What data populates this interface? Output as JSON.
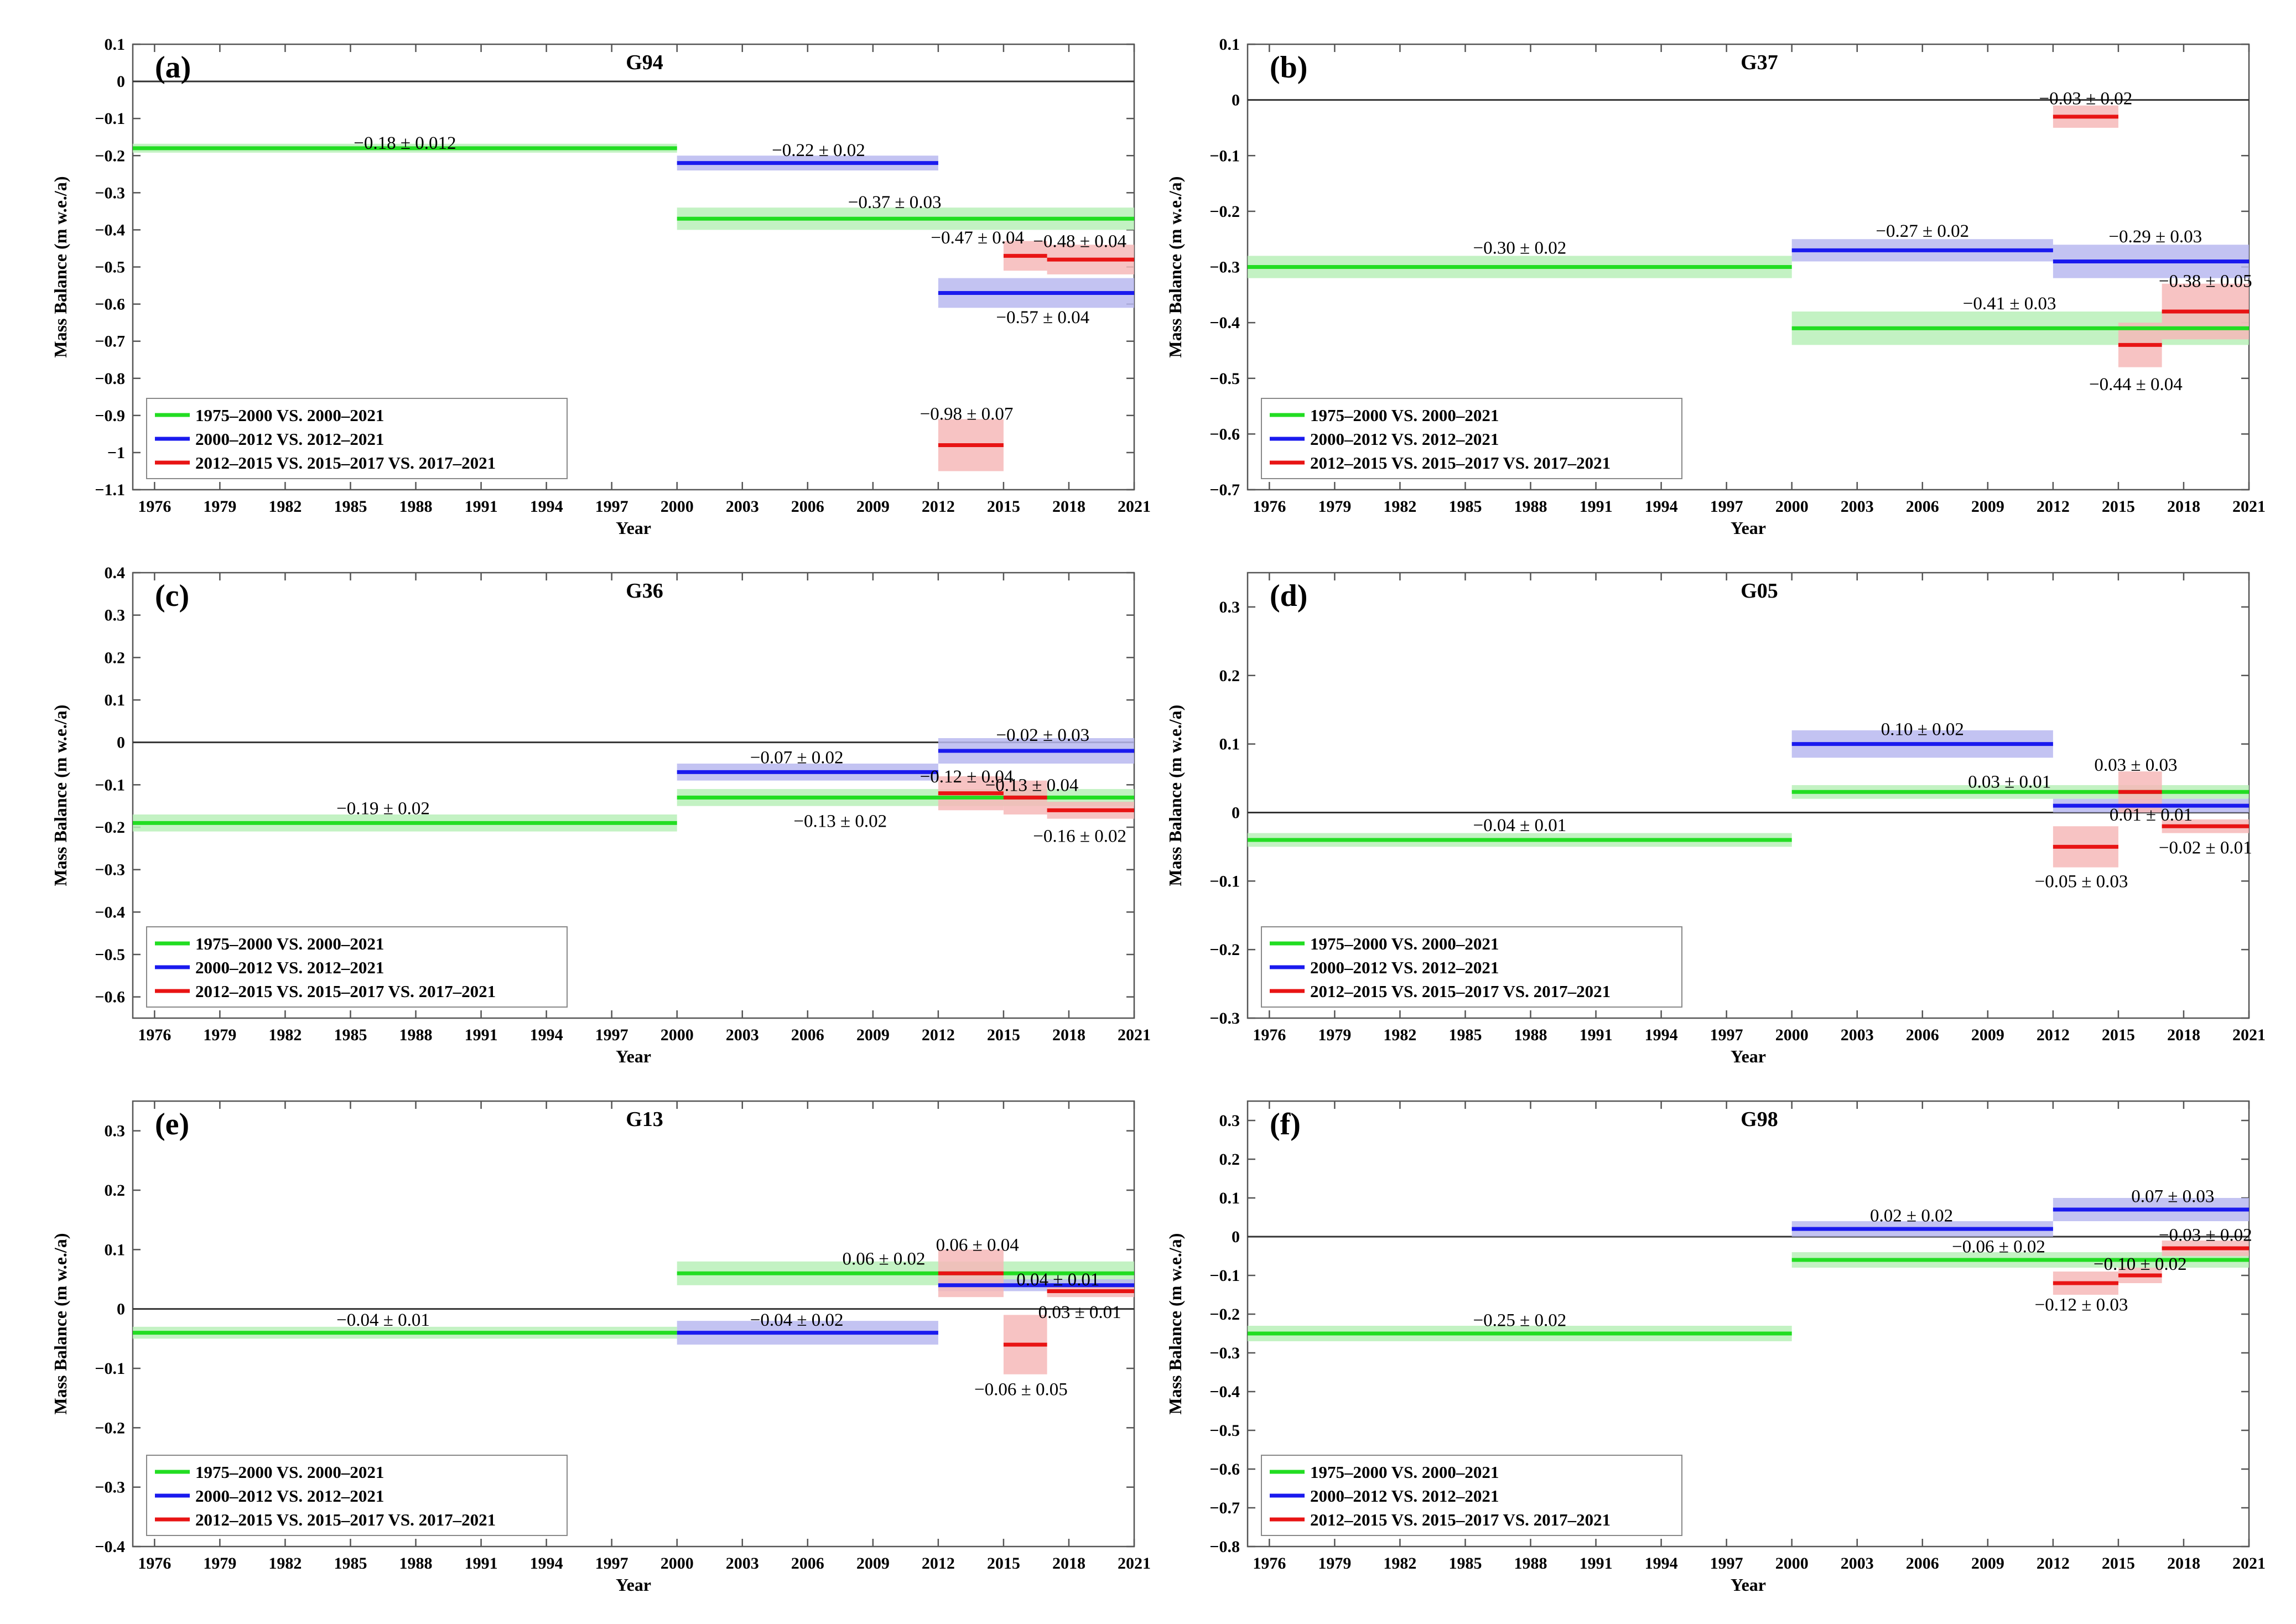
{
  "colors": {
    "green": "#22dd22",
    "green_band": "#b8f0b8",
    "blue": "#1a1aee",
    "blue_band": "#b8b8f0",
    "red": "#e81414",
    "red_band": "#f6b8b8",
    "zero_line": "#333333",
    "axes": "#555555"
  },
  "chart_data": [
    {
      "type": "line",
      "panel": "(a)",
      "title": "G94",
      "xlabel": "Year",
      "ylabel": "Mass Balance (m w.e./a)",
      "xlim": [
        1975,
        2021
      ],
      "ylim": [
        -1.1,
        0.1
      ],
      "xticks": [
        "1976",
        "1979",
        "1982",
        "1985",
        "1988",
        "1991",
        "1994",
        "1997",
        "2000",
        "2003",
        "2006",
        "2009",
        "2012",
        "2015",
        "2018",
        "2021"
      ],
      "yticks": [
        "0.1",
        "0",
        "−0.1",
        "−0.2",
        "−0.3",
        "−0.4",
        "−0.5",
        "−0.6",
        "−0.7",
        "−0.8",
        "−0.9",
        "−1",
        "−1.1"
      ],
      "legend": [
        "1975–2000 VS. 2000–2021",
        "2000–2012 VS. 2012–2021",
        "2012–2015 VS. 2015–2017 VS. 2017–2021"
      ],
      "series": [
        {
          "name": "1975–2000 VS. 2000–2021",
          "color": "green",
          "segments": [
            {
              "x0": 1975,
              "x1": 2000,
              "y": -0.18,
              "err": 0.012,
              "label": "−0.18 ± 0.012",
              "lx": 1987.5,
              "ly": -0.165
            },
            {
              "x0": 2000,
              "x1": 2021,
              "y": -0.37,
              "err": 0.03,
              "label": "−0.37 ± 0.03",
              "lx": 2010,
              "ly": -0.325
            }
          ]
        },
        {
          "name": "2000–2012 VS. 2012–2021",
          "color": "blue",
          "segments": [
            {
              "x0": 2000,
              "x1": 2012,
              "y": -0.22,
              "err": 0.02,
              "label": "−0.22 ± 0.02",
              "lx": 2006.5,
              "ly": -0.185
            },
            {
              "x0": 2012,
              "x1": 2021,
              "y": -0.57,
              "err": 0.04,
              "label": "−0.57 ± 0.04",
              "lx": 2016.8,
              "ly": -0.635
            }
          ]
        },
        {
          "name": "2012–2015 VS. 2015–2017 VS. 2017–2021",
          "color": "red",
          "segments": [
            {
              "x0": 2015,
              "x1": 2017,
              "y": -0.47,
              "err": 0.04,
              "label": "−0.47 ± 0.04",
              "lx": 2013.8,
              "ly": -0.42
            },
            {
              "x0": 2017,
              "x1": 2021,
              "y": -0.48,
              "err": 0.04,
              "label": "−0.48 ± 0.04",
              "lx": 2018.5,
              "ly": -0.43
            },
            {
              "x0": 2012,
              "x1": 2015,
              "y": -0.98,
              "err": 0.07,
              "label": "−0.98 ± 0.07",
              "lx": 2013.3,
              "ly": -0.895
            }
          ]
        }
      ]
    },
    {
      "type": "line",
      "panel": "(b)",
      "title": "G37",
      "xlabel": "Year",
      "ylabel": "Mass Balance (m w.e./a)",
      "xlim": [
        1975,
        2021
      ],
      "ylim": [
        -0.7,
        0.1
      ],
      "xticks": [
        "1976",
        "1979",
        "1982",
        "1985",
        "1988",
        "1991",
        "1994",
        "1997",
        "2000",
        "2003",
        "2006",
        "2009",
        "2012",
        "2015",
        "2018",
        "2021"
      ],
      "yticks": [
        "0.1",
        "0",
        "−0.1",
        "−0.2",
        "−0.3",
        "−0.4",
        "−0.5",
        "−0.6",
        "−0.7"
      ],
      "legend": [
        "1975–2000 VS. 2000–2021",
        "2000–2012 VS. 2012–2021",
        "2012–2015 VS. 2015–2017 VS. 2017–2021"
      ],
      "series": [
        {
          "name": "1975–2000 VS. 2000–2021",
          "color": "green",
          "segments": [
            {
              "x0": 1975,
              "x1": 2000,
              "y": -0.3,
              "err": 0.02,
              "label": "−0.30 ± 0.02",
              "lx": 1987.5,
              "ly": -0.265
            },
            {
              "x0": 2000,
              "x1": 2021,
              "y": -0.41,
              "err": 0.03,
              "label": "−0.41 ± 0.03",
              "lx": 2010,
              "ly": -0.365
            }
          ]
        },
        {
          "name": "2000–2012 VS. 2012–2021",
          "color": "blue",
          "segments": [
            {
              "x0": 2000,
              "x1": 2012,
              "y": -0.27,
              "err": 0.02,
              "label": "−0.27 ± 0.02",
              "lx": 2006,
              "ly": -0.235
            },
            {
              "x0": 2012,
              "x1": 2021,
              "y": -0.29,
              "err": 0.03,
              "label": "−0.29 ± 0.03",
              "lx": 2016.7,
              "ly": -0.245
            }
          ]
        },
        {
          "name": "2012–2015 VS. 2015–2017 VS. 2017–2021",
          "color": "red",
          "segments": [
            {
              "x0": 2012,
              "x1": 2015,
              "y": -0.03,
              "err": 0.02,
              "label": "−0.03 ± 0.02",
              "lx": 2013.5,
              "ly": 0.003
            },
            {
              "x0": 2015,
              "x1": 2017,
              "y": -0.44,
              "err": 0.04,
              "label": "−0.44 ± 0.04",
              "lx": 2015.8,
              "ly": -0.51
            },
            {
              "x0": 2017,
              "x1": 2021,
              "y": -0.38,
              "err": 0.05,
              "label": "−0.38 ± 0.05",
              "lx": 2019,
              "ly": -0.325
            }
          ]
        }
      ]
    },
    {
      "type": "line",
      "panel": "(c)",
      "title": "G36",
      "xlabel": "Year",
      "ylabel": "Mass Balance (m w.e./a)",
      "xlim": [
        1975,
        2021
      ],
      "ylim": [
        -0.65,
        0.4
      ],
      "xticks": [
        "1976",
        "1979",
        "1982",
        "1985",
        "1988",
        "1991",
        "1994",
        "1997",
        "2000",
        "2003",
        "2006",
        "2009",
        "2012",
        "2015",
        "2018",
        "2021"
      ],
      "yticks": [
        "0.4",
        "0.3",
        "0.2",
        "0.1",
        "0",
        "−0.1",
        "−0.2",
        "−0.3",
        "−0.4",
        "−0.5",
        "−0.6"
      ],
      "legend": [
        "1975–2000 VS. 2000–2021",
        "2000–2012 VS. 2012–2021",
        "2012–2015 VS. 2015–2017 VS. 2017–2021"
      ],
      "series": [
        {
          "name": "1975–2000 VS. 2000–2021",
          "color": "green",
          "segments": [
            {
              "x0": 1975,
              "x1": 2000,
              "y": -0.19,
              "err": 0.02,
              "label": "−0.19 ± 0.02",
              "lx": 1986.5,
              "ly": -0.155
            },
            {
              "x0": 2000,
              "x1": 2021,
              "y": -0.13,
              "err": 0.02,
              "label": "−0.13 ± 0.02",
              "lx": 2007.5,
              "ly": -0.185
            }
          ]
        },
        {
          "name": "2000–2012 VS. 2012–2021",
          "color": "blue",
          "segments": [
            {
              "x0": 2000,
              "x1": 2012,
              "y": -0.07,
              "err": 0.02,
              "label": "−0.07 ± 0.02",
              "lx": 2005.5,
              "ly": -0.035
            },
            {
              "x0": 2012,
              "x1": 2021,
              "y": -0.02,
              "err": 0.03,
              "label": "−0.02 ± 0.03",
              "lx": 2016.8,
              "ly": 0.018
            }
          ]
        },
        {
          "name": "2012–2015 VS. 2015–2017 VS. 2017–2021",
          "color": "red",
          "segments": [
            {
              "x0": 2012,
              "x1": 2015,
              "y": -0.12,
              "err": 0.04,
              "label": "−0.12 ± 0.04",
              "lx": 2013.3,
              "ly": -0.08
            },
            {
              "x0": 2015,
              "x1": 2017,
              "y": -0.13,
              "err": 0.04,
              "label": "−0.13 ± 0.04",
              "lx": 2016.3,
              "ly": -0.1
            },
            {
              "x0": 2017,
              "x1": 2021,
              "y": -0.16,
              "err": 0.02,
              "label": "−0.16 ± 0.02",
              "lx": 2018.5,
              "ly": -0.22
            }
          ]
        }
      ]
    },
    {
      "type": "line",
      "panel": "(d)",
      "title": "G05",
      "xlabel": "Year",
      "ylabel": "Mass Balance (m w.e./a)",
      "xlim": [
        1975,
        2021
      ],
      "ylim": [
        -0.3,
        0.35
      ],
      "xticks": [
        "1976",
        "1979",
        "1982",
        "1985",
        "1988",
        "1991",
        "1994",
        "1997",
        "2000",
        "2003",
        "2006",
        "2009",
        "2012",
        "2015",
        "2018",
        "2021"
      ],
      "yticks": [
        "0.3",
        "0.2",
        "0.1",
        "0",
        "−0.1",
        "−0.2",
        "−0.3"
      ],
      "legend": [
        "1975–2000 VS. 2000–2021",
        "2000–2012 VS. 2012–2021",
        "2012–2015 VS. 2015–2017 VS. 2017–2021"
      ],
      "series": [
        {
          "name": "1975–2000 VS. 2000–2021",
          "color": "green",
          "segments": [
            {
              "x0": 1975,
              "x1": 2000,
              "y": -0.04,
              "err": 0.01,
              "label": "−0.04 ± 0.01",
              "lx": 1987.5,
              "ly": -0.018
            },
            {
              "x0": 2000,
              "x1": 2021,
              "y": 0.03,
              "err": 0.01,
              "label": "0.03 ± 0.01",
              "lx": 2010,
              "ly": 0.045
            }
          ]
        },
        {
          "name": "2000–2012 VS. 2012–2021",
          "color": "blue",
          "segments": [
            {
              "x0": 2000,
              "x1": 2012,
              "y": 0.1,
              "err": 0.02,
              "label": "0.10 ± 0.02",
              "lx": 2006,
              "ly": 0.122
            },
            {
              "x0": 2012,
              "x1": 2021,
              "y": 0.01,
              "err": 0.01,
              "label": "0.01 ± 0.01",
              "lx": 2016.5,
              "ly": -0.003
            }
          ]
        },
        {
          "name": "2012–2015 VS. 2015–2017 VS. 2017–2021",
          "color": "red",
          "segments": [
            {
              "x0": 2012,
              "x1": 2015,
              "y": -0.05,
              "err": 0.03,
              "label": "−0.05 ± 0.03",
              "lx": 2013.3,
              "ly": -0.1
            },
            {
              "x0": 2015,
              "x1": 2017,
              "y": 0.03,
              "err": 0.03,
              "label": "0.03 ± 0.03",
              "lx": 2015.8,
              "ly": 0.07
            },
            {
              "x0": 2017,
              "x1": 2021,
              "y": -0.02,
              "err": 0.01,
              "label": "−0.02 ± 0.01",
              "lx": 2019,
              "ly": -0.051
            }
          ]
        }
      ]
    },
    {
      "type": "line",
      "panel": "(e)",
      "title": "G13",
      "xlabel": "Year",
      "ylabel": "Mass Balance (m w.e./a)",
      "xlim": [
        1975,
        2021
      ],
      "ylim": [
        -0.4,
        0.35
      ],
      "xticks": [
        "1976",
        "1979",
        "1982",
        "1985",
        "1988",
        "1991",
        "1994",
        "1997",
        "2000",
        "2003",
        "2006",
        "2009",
        "2012",
        "2015",
        "2018",
        "2021"
      ],
      "yticks": [
        "0.3",
        "0.2",
        "0.1",
        "0",
        "−0.1",
        "−0.2",
        "−0.3",
        "−0.4"
      ],
      "legend": [
        "1975–2000 VS. 2000–2021",
        "2000–2012 VS. 2012–2021",
        "2012–2015 VS. 2015–2017 VS. 2017–2021"
      ],
      "series": [
        {
          "name": "1975–2000 VS. 2000–2021",
          "color": "green",
          "segments": [
            {
              "x0": 1975,
              "x1": 2000,
              "y": -0.04,
              "err": 0.01,
              "label": "−0.04 ± 0.01",
              "lx": 1986.5,
              "ly": -0.018
            },
            {
              "x0": 2000,
              "x1": 2021,
              "y": 0.06,
              "err": 0.02,
              "label": "0.06 ± 0.02",
              "lx": 2009.5,
              "ly": 0.085
            }
          ]
        },
        {
          "name": "2000–2012 VS. 2012–2021",
          "color": "blue",
          "segments": [
            {
              "x0": 2000,
              "x1": 2012,
              "y": -0.04,
              "err": 0.02,
              "label": "−0.04 ± 0.02",
              "lx": 2005.5,
              "ly": -0.018
            },
            {
              "x0": 2012,
              "x1": 2021,
              "y": 0.04,
              "err": 0.01,
              "label": "0.04 ± 0.01",
              "lx": 2017.5,
              "ly": 0.05
            }
          ]
        },
        {
          "name": "2012–2015 VS. 2015–2017 VS. 2017–2021",
          "color": "red",
          "segments": [
            {
              "x0": 2012,
              "x1": 2015,
              "y": 0.06,
              "err": 0.04,
              "label": "0.06 ± 0.04",
              "lx": 2013.8,
              "ly": 0.108
            },
            {
              "x0": 2015,
              "x1": 2017,
              "y": -0.06,
              "err": 0.05,
              "label": "−0.06 ± 0.05",
              "lx": 2015.8,
              "ly": -0.135
            },
            {
              "x0": 2017,
              "x1": 2021,
              "y": 0.03,
              "err": 0.01,
              "label": "0.03 ± 0.01",
              "lx": 2018.5,
              "ly": -0.005
            }
          ]
        }
      ]
    },
    {
      "type": "line",
      "panel": "(f)",
      "title": "G98",
      "xlabel": "Year",
      "ylabel": "Mass Balance (m w.e./a)",
      "xlim": [
        1975,
        2021
      ],
      "ylim": [
        -0.8,
        0.35
      ],
      "xticks": [
        "1976",
        "1979",
        "1982",
        "1985",
        "1988",
        "1991",
        "1994",
        "1997",
        "2000",
        "2003",
        "2006",
        "2009",
        "2012",
        "2015",
        "2018",
        "2021"
      ],
      "yticks": [
        "0.3",
        "0.2",
        "0.1",
        "0",
        "−0.1",
        "−0.2",
        "−0.3",
        "−0.4",
        "−0.5",
        "−0.6",
        "−0.7",
        "−0.8"
      ],
      "legend": [
        "1975–2000 VS. 2000–2021",
        "2000–2012 VS. 2012–2021",
        "2012–2015 VS. 2015–2017 VS. 2017–2021"
      ],
      "series": [
        {
          "name": "1975–2000 VS. 2000–2021",
          "color": "green",
          "segments": [
            {
              "x0": 1975,
              "x1": 2000,
              "y": -0.25,
              "err": 0.02,
              "label": "−0.25 ± 0.02",
              "lx": 1987.5,
              "ly": -0.215
            },
            {
              "x0": 2000,
              "x1": 2021,
              "y": -0.06,
              "err": 0.02,
              "label": "−0.06 ± 0.02",
              "lx": 2009.5,
              "ly": -0.025
            }
          ]
        },
        {
          "name": "2000–2012 VS. 2012–2021",
          "color": "blue",
          "segments": [
            {
              "x0": 2000,
              "x1": 2012,
              "y": 0.02,
              "err": 0.02,
              "label": "0.02 ± 0.02",
              "lx": 2005.5,
              "ly": 0.055
            },
            {
              "x0": 2012,
              "x1": 2021,
              "y": 0.07,
              "err": 0.03,
              "label": "0.07 ± 0.03",
              "lx": 2017.5,
              "ly": 0.105
            }
          ]
        },
        {
          "name": "2012–2015 VS. 2015–2017 VS. 2017–2021",
          "color": "red",
          "segments": [
            {
              "x0": 2012,
              "x1": 2015,
              "y": -0.12,
              "err": 0.03,
              "label": "−0.12 ± 0.03",
              "lx": 2013.3,
              "ly": -0.175
            },
            {
              "x0": 2015,
              "x1": 2017,
              "y": -0.1,
              "err": 0.02,
              "label": "−0.10 ± 0.02",
              "lx": 2016,
              "ly": -0.07
            },
            {
              "x0": 2017,
              "x1": 2021,
              "y": -0.03,
              "err": 0.02,
              "label": "−0.03 ± 0.02",
              "lx": 2019,
              "ly": 0.005
            }
          ]
        }
      ]
    }
  ]
}
